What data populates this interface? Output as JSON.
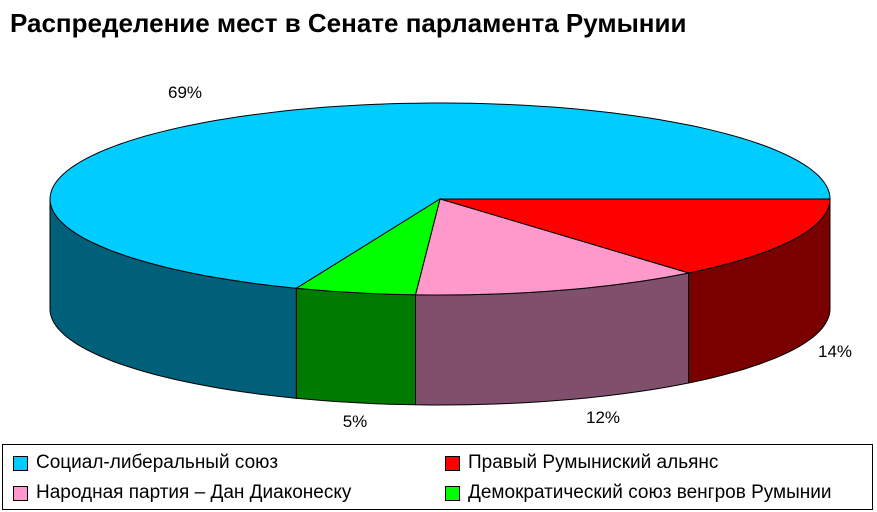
{
  "chart_data": {
    "type": "pie",
    "title": "Распределение мест в Сенате парламента Румынии",
    "series": [
      {
        "name": "Социал-либеральный союз",
        "value": 69,
        "label": "69%",
        "color": "#00CCFF",
        "side_color": "#00607A"
      },
      {
        "name": "Правый Румыниский альянс",
        "value": 14,
        "label": "14%",
        "color": "#FF0000",
        "side_color": "#7A0000"
      },
      {
        "name": "Народная партия – Дан Диаконеску",
        "value": 12,
        "label": "12%",
        "color": "#FF99CC",
        "side_color": "#7F4F6B"
      },
      {
        "name": "Демократический союз венгров Румынии",
        "value": 5,
        "label": "5%",
        "color": "#00FF00",
        "side_color": "#007A00"
      }
    ],
    "legend_position": "bottom"
  }
}
